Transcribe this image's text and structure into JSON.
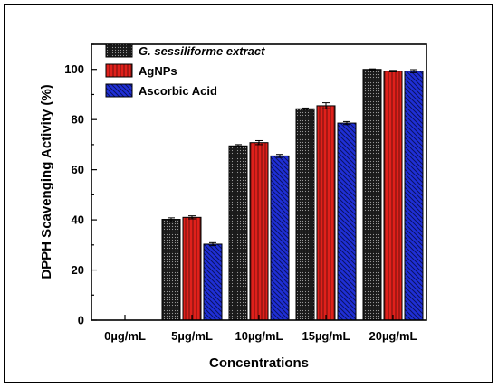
{
  "chart_data": {
    "type": "bar",
    "title": "",
    "xlabel": "Concentrations",
    "ylabel": "DPPH Scavenging Activity (%)",
    "ylim": [
      0,
      110
    ],
    "yticks": [
      0,
      20,
      40,
      60,
      80,
      100
    ],
    "categories": [
      "0µg/mL",
      "5µg/mL",
      "10µg/mL",
      "15µg/mL",
      "20µg/mL"
    ],
    "series": [
      {
        "name": "G. sessiliforme extract",
        "color": "#1a1a1a",
        "pattern": "dots",
        "values": [
          0,
          40.2,
          69.5,
          84.3,
          100.0
        ],
        "errors": [
          0,
          0.6,
          0.5,
          0.3,
          0.2
        ]
      },
      {
        "name": "AgNPs",
        "color": "#e0201b",
        "pattern": "vertical-lines",
        "values": [
          0,
          41.0,
          70.8,
          85.5,
          99.3
        ],
        "errors": [
          0,
          0.6,
          0.8,
          1.2,
          0.3
        ]
      },
      {
        "name": "Ascorbic Acid",
        "color": "#1f2fd6",
        "pattern": "diagonal-lines",
        "values": [
          0,
          30.3,
          65.5,
          78.6,
          99.3
        ],
        "errors": [
          0,
          0.6,
          0.6,
          0.6,
          0.6
        ]
      }
    ],
    "legend": "top-left",
    "grid": false
  }
}
